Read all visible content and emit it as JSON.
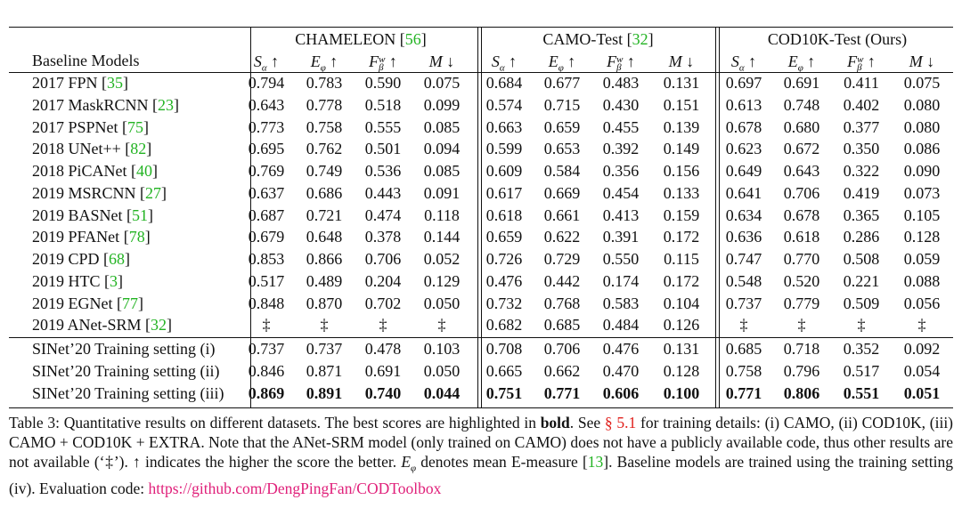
{
  "table": {
    "baseline_header": "Baseline Models",
    "groups": [
      {
        "name": "CHAMELEON",
        "ref": "56"
      },
      {
        "name": "CAMO-Test",
        "ref": "32"
      },
      {
        "name": "COD10K-Test (Ours)",
        "ref": ""
      }
    ],
    "metrics": [
      {
        "sym": "S",
        "sub": "α",
        "sup": "",
        "arrow": "↑"
      },
      {
        "sym": "E",
        "sub": "φ",
        "sup": "",
        "arrow": "↑"
      },
      {
        "sym": "F",
        "sub": "β",
        "sup": "w",
        "arrow": "↑"
      },
      {
        "sym": "M",
        "sub": "",
        "sup": "",
        "arrow": "↓"
      }
    ],
    "rows": [
      {
        "name": "2017 FPN",
        "ref": "35",
        "values": [
          "0.794",
          "0.783",
          "0.590",
          "0.075",
          "0.684",
          "0.677",
          "0.483",
          "0.131",
          "0.697",
          "0.691",
          "0.411",
          "0.075"
        ]
      },
      {
        "name": "2017 MaskRCNN",
        "ref": "23",
        "values": [
          "0.643",
          "0.778",
          "0.518",
          "0.099",
          "0.574",
          "0.715",
          "0.430",
          "0.151",
          "0.613",
          "0.748",
          "0.402",
          "0.080"
        ]
      },
      {
        "name": "2017 PSPNet",
        "ref": "75",
        "values": [
          "0.773",
          "0.758",
          "0.555",
          "0.085",
          "0.663",
          "0.659",
          "0.455",
          "0.139",
          "0.678",
          "0.680",
          "0.377",
          "0.080"
        ]
      },
      {
        "name": "2018 UNet++",
        "ref": "82",
        "values": [
          "0.695",
          "0.762",
          "0.501",
          "0.094",
          "0.599",
          "0.653",
          "0.392",
          "0.149",
          "0.623",
          "0.672",
          "0.350",
          "0.086"
        ]
      },
      {
        "name": "2018 PiCANet",
        "ref": "40",
        "values": [
          "0.769",
          "0.749",
          "0.536",
          "0.085",
          "0.609",
          "0.584",
          "0.356",
          "0.156",
          "0.649",
          "0.643",
          "0.322",
          "0.090"
        ]
      },
      {
        "name": "2019 MSRCNN",
        "ref": "27",
        "values": [
          "0.637",
          "0.686",
          "0.443",
          "0.091",
          "0.617",
          "0.669",
          "0.454",
          "0.133",
          "0.641",
          "0.706",
          "0.419",
          "0.073"
        ]
      },
      {
        "name": "2019 BASNet",
        "ref": "51",
        "values": [
          "0.687",
          "0.721",
          "0.474",
          "0.118",
          "0.618",
          "0.661",
          "0.413",
          "0.159",
          "0.634",
          "0.678",
          "0.365",
          "0.105"
        ]
      },
      {
        "name": "2019 PFANet",
        "ref": "78",
        "values": [
          "0.679",
          "0.648",
          "0.378",
          "0.144",
          "0.659",
          "0.622",
          "0.391",
          "0.172",
          "0.636",
          "0.618",
          "0.286",
          "0.128"
        ]
      },
      {
        "name": "2019 CPD",
        "ref": "68",
        "values": [
          "0.853",
          "0.866",
          "0.706",
          "0.052",
          "0.726",
          "0.729",
          "0.550",
          "0.115",
          "0.747",
          "0.770",
          "0.508",
          "0.059"
        ]
      },
      {
        "name": "2019 HTC",
        "ref": "3",
        "values": [
          "0.517",
          "0.489",
          "0.204",
          "0.129",
          "0.476",
          "0.442",
          "0.174",
          "0.172",
          "0.548",
          "0.520",
          "0.221",
          "0.088"
        ]
      },
      {
        "name": "2019 EGNet",
        "ref": "77",
        "values": [
          "0.848",
          "0.870",
          "0.702",
          "0.050",
          "0.732",
          "0.768",
          "0.583",
          "0.104",
          "0.737",
          "0.779",
          "0.509",
          "0.056"
        ]
      },
      {
        "name": "2019 ANet-SRM",
        "ref": "32",
        "values": [
          "‡",
          "‡",
          "‡",
          "‡",
          "0.682",
          "0.685",
          "0.484",
          "0.126",
          "‡",
          "‡",
          "‡",
          "‡"
        ]
      },
      {
        "name": "SINet’20 Training setting (i)",
        "ref": "",
        "values": [
          "0.737",
          "0.737",
          "0.478",
          "0.103",
          "0.708",
          "0.706",
          "0.476",
          "0.131",
          "0.685",
          "0.718",
          "0.352",
          "0.092"
        ]
      },
      {
        "name": "SINet’20 Training setting (ii)",
        "ref": "",
        "values": [
          "0.846",
          "0.871",
          "0.691",
          "0.050",
          "0.665",
          "0.662",
          "0.470",
          "0.128",
          "0.758",
          "0.796",
          "0.517",
          "0.054"
        ]
      },
      {
        "name": "SINet’20 Training setting (iii)",
        "ref": "",
        "bold": true,
        "values": [
          "0.869",
          "0.891",
          "0.740",
          "0.044",
          "0.751",
          "0.771",
          "0.606",
          "0.100",
          "0.771",
          "0.806",
          "0.551",
          "0.051"
        ]
      }
    ]
  },
  "caption": {
    "label": "Table 3:",
    "t1": " Quantitative results on different datasets. The best scores are highlighted in ",
    "bold_word": "bold",
    "t2": ". See ",
    "section": "§ 5.1",
    "t3": " for training details: (i) CAMO, (ii) COD10K, (iii) CAMO + COD10K + EXTRA. Note that the ANet-SRM model (only trained on CAMO) does not have a publicly available code, thus other results are not available (‘‡’). ↑ indicates the higher the score the better. ",
    "e_sym": "E",
    "e_sub": "φ",
    "t4": " denotes mean E-measure [",
    "ref13": "13",
    "t5": "]. Baseline models are trained using the training setting (iv). Evaluation code: ",
    "url": "https://github.com/DengPingFan/CODToolbox"
  }
}
